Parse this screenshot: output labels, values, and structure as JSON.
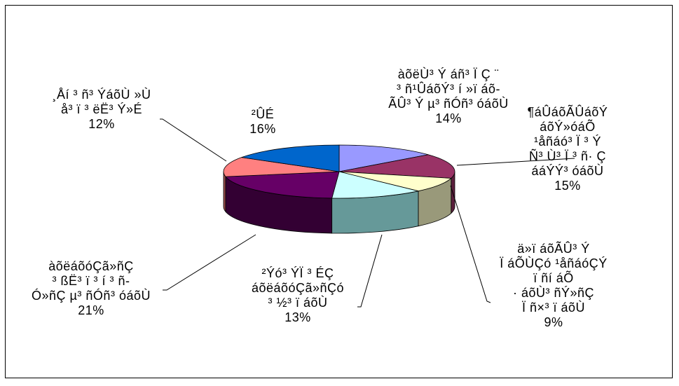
{
  "chart_data": {
    "type": "pie",
    "style": "3d-exploded-none",
    "title": "",
    "slices": [
      {
        "lines": [
          "àõëÙ³ Ý áñ³ Ï Ç ¨",
          "³ ñ¹ÛáõÝ³ í »ï áõ-",
          "ÃÛ³ Ý µ³ ñÓñ³ óáõÙ"
        ],
        "pct_label": "14%",
        "value": 14,
        "color": "#9999FF",
        "side": "#5C5C99"
      },
      {
        "lines": [
          "¶áÛáõÃÛáõÝ",
          "áõÝ»óáÕ",
          "¹åñáó³ Ï ³ Ý",
          "Ñ³ Ù³ Ï ³ ñ· Ç",
          "ááÝÝ³ óáõÙ"
        ],
        "pct_label": "15%",
        "value": 15,
        "color": "#993366",
        "side": "#5C1F3D"
      },
      {
        "lines": [
          "ä»ï áõÃÛ³ Ý",
          "Ï áÕÙÇó ¹åñáóÇÝ",
          "ï ñí áÕ",
          "· áõÙ³ ñÝ»ñÇ",
          "Ï ñ×³ ï áõÙ"
        ],
        "pct_label": "9%",
        "value": 9,
        "color": "#FFFFCC",
        "side": "#99997A"
      },
      {
        "lines": [
          "²Ýó³ ÝÏ ³ ÉÇ",
          "áõëáõóÇã»ñÇó",
          "³ ½³ ï áõÙ"
        ],
        "pct_label": "13%",
        "value": 13,
        "color": "#CCFFFF",
        "side": "#669999"
      },
      {
        "lines": [
          "àõëáõóÇã»ñÇ",
          "³ ßË³ ï ³ í ³ ñ-",
          "Ó»ñÇ µ³ ñÓñ³ óáõÙ"
        ],
        "pct_label": "21%",
        "value": 21,
        "color": "#660066",
        "side": "#330033"
      },
      {
        "lines": [
          "¸Åí ³ ñ³ ÝáõÙ »Ù",
          "å³ ï ³ ëË³ Ý»É"
        ],
        "pct_label": "12%",
        "value": 12,
        "color": "#FF8080",
        "side": "#994D4D"
      },
      {
        "lines": [
          "²ÛÉ"
        ],
        "pct_label": "16%",
        "value": 16,
        "color": "#0066CC",
        "side": "#003D7A"
      }
    ]
  }
}
